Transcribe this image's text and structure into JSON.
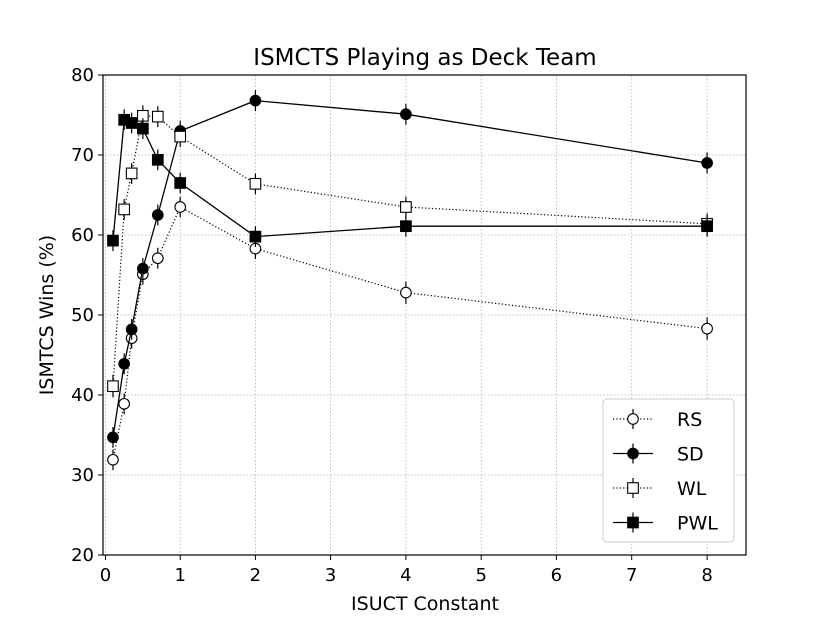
{
  "chart_data": {
    "type": "line",
    "title": "ISMCTS Playing as Deck Team",
    "xlabel": "ISUCT Constant",
    "ylabel": "ISMTCS Wins (%)",
    "ylim": [
      20,
      80
    ],
    "yticks": [
      20,
      30,
      40,
      50,
      60,
      70,
      80
    ],
    "xticks": [
      "0",
      "1",
      "2",
      "3",
      "4",
      "5",
      "6",
      "7",
      "8"
    ],
    "x_note": "piecewise axis: values 0..1 span one unit, 1..2 span one unit, 2..4 span two units, 4..8 span four units",
    "grid": true,
    "legend_position": "lower right",
    "series": [
      {
        "name": "RS",
        "marker": "circle",
        "fill": "open",
        "linestyle": "dotted",
        "x": [
          0.1,
          0.25,
          0.35,
          0.5,
          0.7,
          1,
          2,
          4,
          8
        ],
        "y": [
          31.9,
          38.9,
          47.1,
          55.1,
          57.1,
          63.5,
          58.3,
          52.8,
          48.3
        ],
        "err": [
          1.3,
          1.3,
          1.3,
          1.3,
          1.3,
          1.3,
          1.3,
          1.4,
          1.4
        ]
      },
      {
        "name": "SD",
        "marker": "circle",
        "fill": "filled",
        "linestyle": "solid",
        "x": [
          0.1,
          0.25,
          0.35,
          0.5,
          0.7,
          1,
          2,
          4,
          8
        ],
        "y": [
          34.7,
          43.9,
          48.2,
          55.8,
          62.5,
          73.0,
          76.8,
          75.1,
          69.0
        ],
        "err": [
          1.3,
          1.3,
          1.3,
          1.3,
          1.3,
          1.3,
          1.3,
          1.3,
          1.3
        ]
      },
      {
        "name": "WL",
        "marker": "square",
        "fill": "open",
        "linestyle": "dotted",
        "x": [
          0.1,
          0.25,
          0.35,
          0.5,
          0.7,
          1,
          2,
          4,
          8
        ],
        "y": [
          41.1,
          63.2,
          67.7,
          74.9,
          74.8,
          72.3,
          66.4,
          63.5,
          61.4
        ],
        "err": [
          1.4,
          1.3,
          1.3,
          1.3,
          1.3,
          1.3,
          1.3,
          1.3,
          1.3
        ]
      },
      {
        "name": "PWL",
        "marker": "square",
        "fill": "filled",
        "linestyle": "solid",
        "x": [
          0.1,
          0.25,
          0.35,
          0.5,
          0.7,
          1,
          2,
          4,
          8
        ],
        "y": [
          59.3,
          74.4,
          74.0,
          73.3,
          69.4,
          66.5,
          59.8,
          61.1,
          61.1
        ],
        "err": [
          1.3,
          1.3,
          1.3,
          1.3,
          1.3,
          1.3,
          1.3,
          1.3,
          1.3
        ]
      }
    ]
  }
}
